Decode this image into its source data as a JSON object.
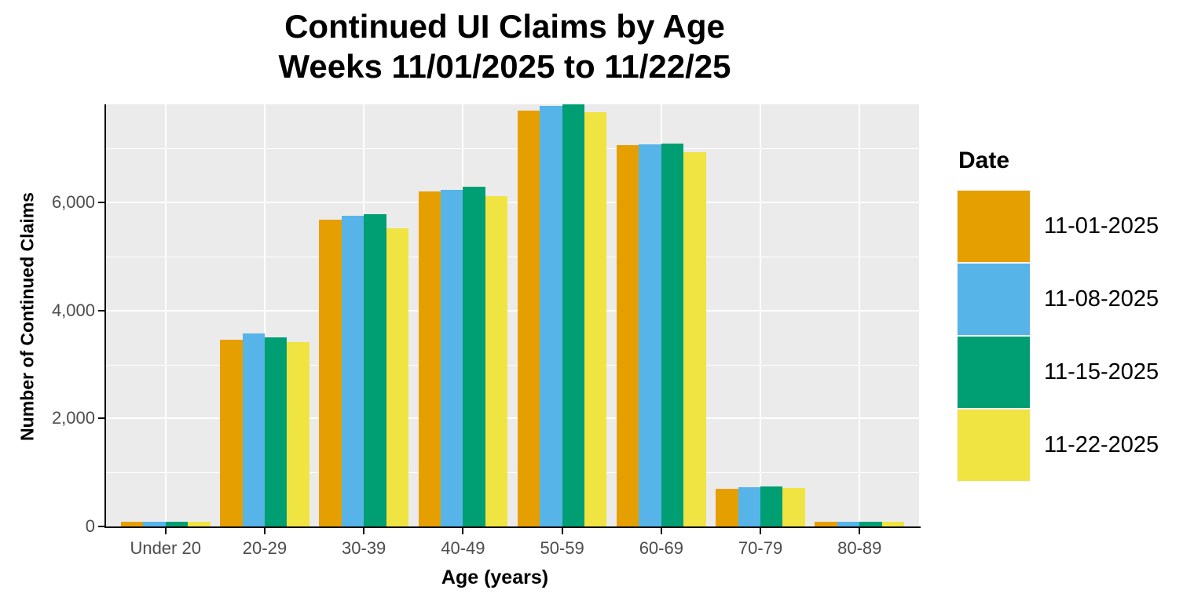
{
  "title": {
    "line1": "Continued UI Claims by Age",
    "line2": "Weeks 11/01/2025 to 11/22/25"
  },
  "axes": {
    "x_title": "Age (years)",
    "y_title": "Number of Continued Claims",
    "y_ticks": [
      {
        "value": 0,
        "label": "0"
      },
      {
        "value": 2000,
        "label": "2,000"
      },
      {
        "value": 4000,
        "label": "4,000"
      },
      {
        "value": 6000,
        "label": "6,000"
      }
    ]
  },
  "legend": {
    "title": "Date",
    "items": [
      {
        "label": "11-01-2025",
        "color": "#E69F00"
      },
      {
        "label": "11-08-2025",
        "color": "#56B4E9"
      },
      {
        "label": "11-15-2025",
        "color": "#009E73"
      },
      {
        "label": "11-22-2025",
        "color": "#F0E442"
      }
    ]
  },
  "colors": {
    "panel_background": "#EBEBEB",
    "gridline": "#FFFFFF",
    "axis_line": "#000000",
    "tick_label": "#4D4D4D"
  },
  "chart_data": {
    "type": "bar",
    "title": "Continued UI Claims by Age",
    "subtitle": "Weeks 11/01/2025 to 11/22/25",
    "xlabel": "Age (years)",
    "ylabel": "Number of Continued Claims",
    "categories": [
      "Under 20",
      "20-29",
      "30-39",
      "40-49",
      "50-59",
      "60-69",
      "70-79",
      "80-89"
    ],
    "series": [
      {
        "name": "11-01-2025",
        "color": "#E69F00",
        "values": [
          90,
          3460,
          5690,
          6210,
          7700,
          7060,
          700,
          90
        ]
      },
      {
        "name": "11-08-2025",
        "color": "#56B4E9",
        "values": [
          90,
          3570,
          5760,
          6240,
          7790,
          7080,
          725,
          90
        ]
      },
      {
        "name": "11-15-2025",
        "color": "#009E73",
        "values": [
          90,
          3510,
          5790,
          6290,
          7820,
          7090,
          735,
          90
        ]
      },
      {
        "name": "11-22-2025",
        "color": "#F0E442",
        "values": [
          85,
          3420,
          5530,
          6120,
          7670,
          6930,
          715,
          90
        ]
      }
    ],
    "ylim": [
      0,
      7820
    ],
    "yticks": [
      0,
      2000,
      4000,
      6000
    ],
    "minor_gridlines": [
      1000,
      3000,
      5000,
      7000
    ],
    "grid": true,
    "legend_title": "Date",
    "legend_position": "right",
    "bar_grouping": "dodge"
  }
}
